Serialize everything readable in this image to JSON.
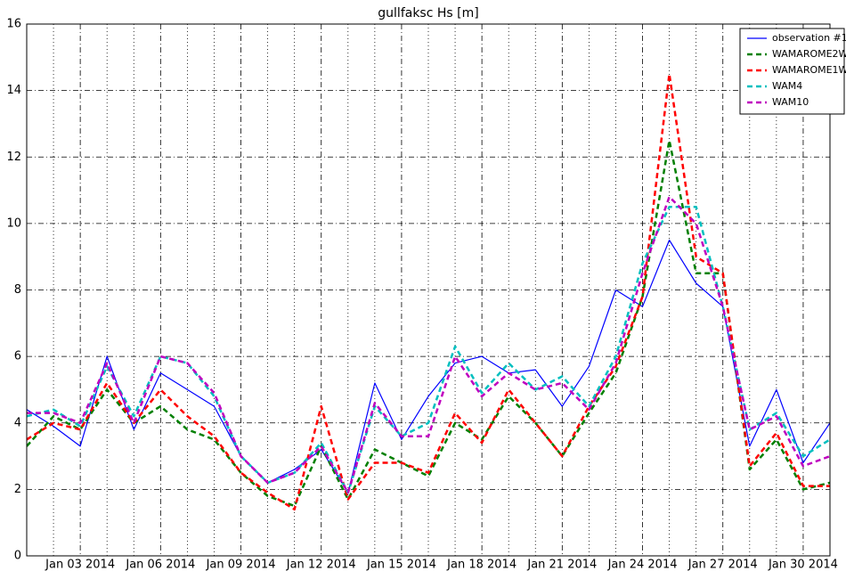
{
  "chart_data": {
    "type": "line",
    "title": "gullfaksc Hs [m]",
    "x": [
      "2014-01-01",
      "2014-01-02",
      "2014-01-03",
      "2014-01-04",
      "2014-01-05",
      "2014-01-06",
      "2014-01-07",
      "2014-01-08",
      "2014-01-09",
      "2014-01-10",
      "2014-01-11",
      "2014-01-12",
      "2014-01-13",
      "2014-01-14",
      "2014-01-15",
      "2014-01-16",
      "2014-01-17",
      "2014-01-18",
      "2014-01-19",
      "2014-01-20",
      "2014-01-21",
      "2014-01-22",
      "2014-01-23",
      "2014-01-24",
      "2014-01-25",
      "2014-01-26",
      "2014-01-27",
      "2014-01-28",
      "2014-01-29",
      "2014-01-30",
      "2014-01-31"
    ],
    "series": [
      {
        "name": "observation #1",
        "color": "#0000ff",
        "style": "solid",
        "values": [
          4.4,
          3.9,
          3.3,
          6.0,
          3.8,
          5.5,
          5.0,
          4.5,
          3.0,
          2.2,
          2.6,
          3.2,
          1.9,
          5.2,
          3.5,
          4.8,
          5.8,
          6.0,
          5.5,
          5.6,
          4.5,
          5.7,
          8.0,
          7.5,
          9.5,
          8.2,
          7.5,
          3.3,
          5.0,
          2.8,
          4.0
        ]
      },
      {
        "name": "WAMAROME2W",
        "color": "#008000",
        "style": "dashed",
        "values": [
          3.3,
          4.2,
          3.8,
          5.0,
          4.0,
          4.5,
          3.8,
          3.5,
          2.5,
          1.8,
          1.5,
          3.3,
          1.7,
          3.2,
          2.8,
          2.4,
          4.0,
          3.5,
          4.8,
          4.0,
          3.0,
          4.3,
          5.5,
          7.8,
          12.5,
          8.5,
          8.5,
          2.6,
          3.5,
          2.0,
          2.2
        ]
      },
      {
        "name": "WAMAROME1W",
        "color": "#ff0000",
        "style": "dashed",
        "values": [
          3.5,
          4.0,
          3.8,
          5.2,
          4.0,
          5.0,
          4.2,
          3.6,
          2.5,
          1.9,
          1.4,
          4.5,
          1.7,
          2.8,
          2.8,
          2.5,
          4.3,
          3.4,
          5.0,
          4.0,
          3.0,
          4.5,
          5.7,
          7.8,
          14.5,
          9.0,
          8.5,
          2.7,
          3.7,
          2.1,
          2.1
        ]
      },
      {
        "name": "WAM4",
        "color": "#00bfbf",
        "style": "dashed",
        "values": [
          4.2,
          4.4,
          3.9,
          5.7,
          4.2,
          6.0,
          5.8,
          4.8,
          3.0,
          2.2,
          2.5,
          3.4,
          1.9,
          4.5,
          3.6,
          4.0,
          6.3,
          4.9,
          5.8,
          5.0,
          5.4,
          4.5,
          6.0,
          8.8,
          10.5,
          10.5,
          7.5,
          3.8,
          4.3,
          3.0,
          3.5
        ]
      },
      {
        "name": "WAM10",
        "color": "#bf00bf",
        "style": "dashed",
        "values": [
          4.3,
          4.3,
          4.0,
          5.8,
          4.0,
          6.0,
          5.8,
          4.9,
          3.0,
          2.2,
          2.5,
          3.3,
          1.9,
          4.6,
          3.6,
          3.6,
          6.0,
          4.8,
          5.5,
          5.0,
          5.2,
          4.4,
          5.8,
          8.5,
          10.8,
          10.0,
          7.5,
          3.8,
          4.2,
          2.7,
          3.0
        ]
      }
    ],
    "xlim": [
      "2014-01-01",
      "2014-01-31"
    ],
    "xticks": [
      {
        "value": "2014-01-03",
        "label": "Jan 03 2014"
      },
      {
        "value": "2014-01-06",
        "label": "Jan 06 2014"
      },
      {
        "value": "2014-01-09",
        "label": "Jan 09 2014"
      },
      {
        "value": "2014-01-12",
        "label": "Jan 12 2014"
      },
      {
        "value": "2014-01-15",
        "label": "Jan 15 2014"
      },
      {
        "value": "2014-01-18",
        "label": "Jan 18 2014"
      },
      {
        "value": "2014-01-21",
        "label": "Jan 21 2014"
      },
      {
        "value": "2014-01-24",
        "label": "Jan 24 2014"
      },
      {
        "value": "2014-01-27",
        "label": "Jan 27 2014"
      },
      {
        "value": "2014-01-30",
        "label": "Jan 30 2014"
      }
    ],
    "ylim": [
      0,
      16
    ],
    "yticks": [
      0,
      2,
      4,
      6,
      8,
      10,
      12,
      14,
      16
    ],
    "grid": true,
    "legend": "upper right"
  }
}
